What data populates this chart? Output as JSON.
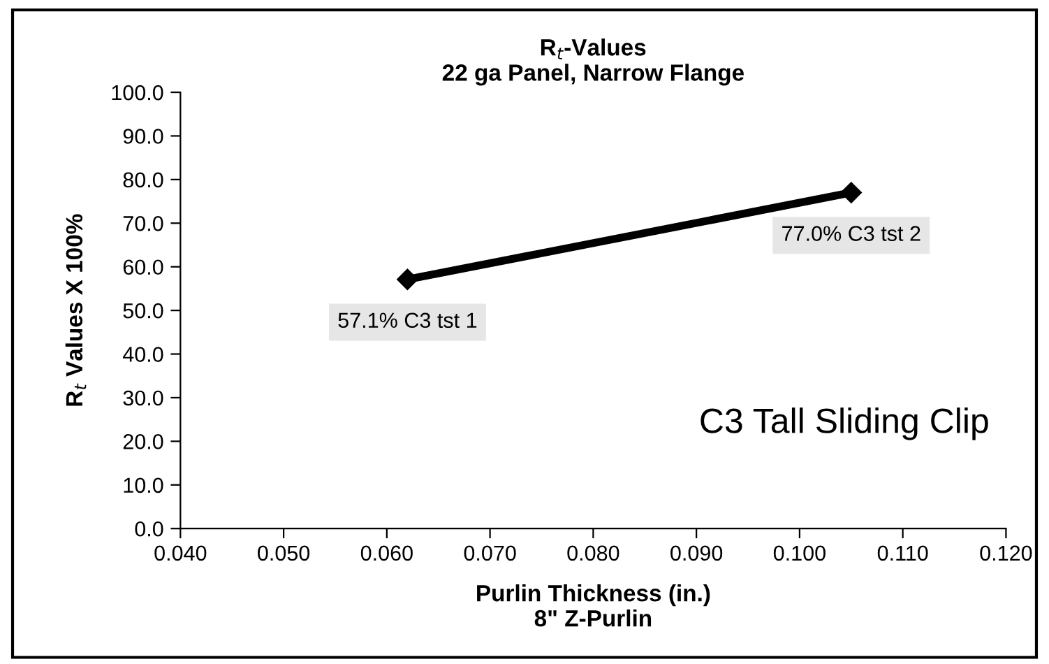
{
  "chart_data": {
    "type": "line",
    "title": "R$_{t}$-Values\n22 ga Panel, Narrow Flange",
    "xlabel": "Purlin Thickness (in.)\n8\" Z-Purlin",
    "ylabel": "R$_{t}$ Values X 100%",
    "x": [
      0.062,
      0.105
    ],
    "series": [
      {
        "color": "#000000",
        "values": [
          57.1,
          77.0
        ],
        "value_labels": [
          "57.1% C3 tst 1",
          "77.0% C3 tst 2"
        ]
      }
    ],
    "xlim": [
      0.04,
      0.12
    ],
    "xticks": [
      {
        "value": 0.04,
        "label": "0.040"
      },
      {
        "value": 0.05,
        "label": "0.050"
      },
      {
        "value": 0.06,
        "label": "0.060"
      },
      {
        "value": 0.07,
        "label": "0.070"
      },
      {
        "value": 0.08,
        "label": "0.080"
      },
      {
        "value": 0.09,
        "label": "0.090"
      },
      {
        "value": 0.1,
        "label": "0.100"
      },
      {
        "value": 0.11,
        "label": "0.110"
      },
      {
        "value": 0.12,
        "label": "0.120"
      }
    ],
    "ylim": [
      0,
      100
    ],
    "yticks": [
      {
        "value": 0,
        "label": "0.0"
      },
      {
        "value": 10,
        "label": "10.0"
      },
      {
        "value": 20,
        "label": "20.0"
      },
      {
        "value": 30,
        "label": "30.0"
      },
      {
        "value": 40,
        "label": "40.0"
      },
      {
        "value": 50,
        "label": "50.0"
      },
      {
        "value": 60,
        "label": "60.0"
      },
      {
        "value": 70,
        "label": "70.0"
      },
      {
        "value": 80,
        "label": "80.0"
      },
      {
        "value": 90,
        "label": "90.0"
      },
      {
        "value": 100,
        "label": "100.0"
      }
    ],
    "annotations": [
      "C3 Tall Sliding Clip"
    ],
    "marker": "diamond",
    "line_style": "solid",
    "grid": false
  }
}
